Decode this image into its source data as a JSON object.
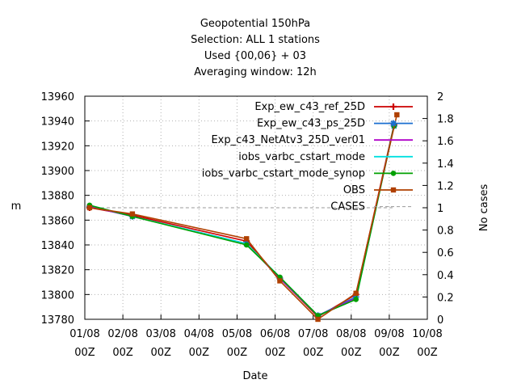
{
  "chart_data": {
    "type": "line",
    "title_lines": [
      "Geopotential 150hPa",
      "Selection: ALL      1 stations",
      "Used {00,06} + 03",
      "Averaging window: 12h"
    ],
    "xlabel": "Date",
    "ylabel": "m",
    "y2label": "No cases",
    "x_ticks": [
      {
        "top": "01/08",
        "bottom": "00Z"
      },
      {
        "top": "02/08",
        "bottom": "00Z"
      },
      {
        "top": "03/08",
        "bottom": "00Z"
      },
      {
        "top": "04/08",
        "bottom": "00Z"
      },
      {
        "top": "05/08",
        "bottom": "00Z"
      },
      {
        "top": "06/08",
        "bottom": "00Z"
      },
      {
        "top": "07/08",
        "bottom": "00Z"
      },
      {
        "top": "08/08",
        "bottom": "00Z"
      },
      {
        "top": "09/08",
        "bottom": "00Z"
      },
      {
        "top": "10/08",
        "bottom": "00Z"
      }
    ],
    "xlim": [
      0,
      9
    ],
    "ylim": [
      13780,
      13960
    ],
    "y_ticks": [
      13780,
      13800,
      13820,
      13840,
      13860,
      13880,
      13900,
      13920,
      13940,
      13960
    ],
    "y2lim": [
      0,
      2
    ],
    "y2_ticks": [
      "0",
      "0.2",
      "0.4",
      "0.6",
      "0.8",
      "1",
      "1.2",
      "1.4",
      "1.6",
      "1.8",
      "2"
    ],
    "x": [
      0.125,
      1.25,
      4.25,
      5.125,
      6.125,
      7.125,
      8.125
    ],
    "series": [
      {
        "name": "Exp_ew_c43_ref_25D",
        "color": "#cc0000",
        "marker": "plus",
        "values": [
          13870,
          13864,
          13843,
          13813,
          13782,
          13800,
          13937
        ]
      },
      {
        "name": "Exp_ew_c43_ps_25D",
        "color": "#1a6fd0",
        "marker": "star",
        "values": [
          13871,
          13863,
          13841,
          13813,
          13783,
          13798,
          13936
        ]
      },
      {
        "name": "Exp_c43_NetAtv3_25D_ver01",
        "color": "#b000c8",
        "marker": "none",
        "values": [
          13871,
          13863,
          13841,
          13813,
          13783,
          13797,
          13936
        ]
      },
      {
        "name": "iobs_varbc_cstart_mode",
        "color": "#00e0e0",
        "marker": "none",
        "values": [
          13872,
          13863,
          13841,
          13814,
          13783,
          13796,
          13936
        ]
      },
      {
        "name": "iobs_varbc_cstart_mode_synop",
        "color": "#00a000",
        "marker": "circle",
        "values": [
          13872,
          13863,
          13840,
          13814,
          13783,
          13796,
          13936
        ]
      },
      {
        "name": "OBS",
        "color": "#b04000",
        "marker": "square",
        "x": [
          0.125,
          1.25,
          4.25,
          5.125,
          6.125,
          7.125,
          8.2
        ],
        "values": [
          13870,
          13865,
          13845,
          13811,
          13780,
          13801,
          13945
        ]
      }
    ],
    "cases": {
      "name": "CASES",
      "color": "#999999",
      "values": [
        1,
        1,
        1,
        1,
        1,
        1,
        1
      ]
    }
  }
}
